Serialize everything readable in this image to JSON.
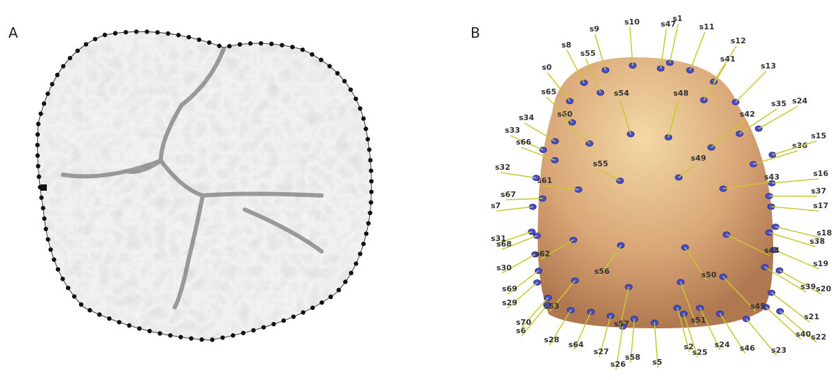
{
  "panels": {
    "a": {
      "label": "A"
    },
    "b": {
      "label": "B"
    }
  },
  "landmark_labels": [
    "s0",
    "s8",
    "s9",
    "s55",
    "s10",
    "s47",
    "s1",
    "s11",
    "s12",
    "s41",
    "s13",
    "s35",
    "s24",
    "s36",
    "s15",
    "s16",
    "s37",
    "s17",
    "s18",
    "s38",
    "s19",
    "s20",
    "s39",
    "s21",
    "s22",
    "s40",
    "s23",
    "s46",
    "s24",
    "s25",
    "s2",
    "s5",
    "s58",
    "s26",
    "s27",
    "s64",
    "s28",
    "s70",
    "s6",
    "s29",
    "s69",
    "s30",
    "s31",
    "s68",
    "s7",
    "s67",
    "s32",
    "s33",
    "s66",
    "s34",
    "s60",
    "s65",
    "s54",
    "s48",
    "s42",
    "s55",
    "s49",
    "s61",
    "s43",
    "s62",
    "s56",
    "s50",
    "s44",
    "s45",
    "s51",
    "s57",
    "s53"
  ]
}
